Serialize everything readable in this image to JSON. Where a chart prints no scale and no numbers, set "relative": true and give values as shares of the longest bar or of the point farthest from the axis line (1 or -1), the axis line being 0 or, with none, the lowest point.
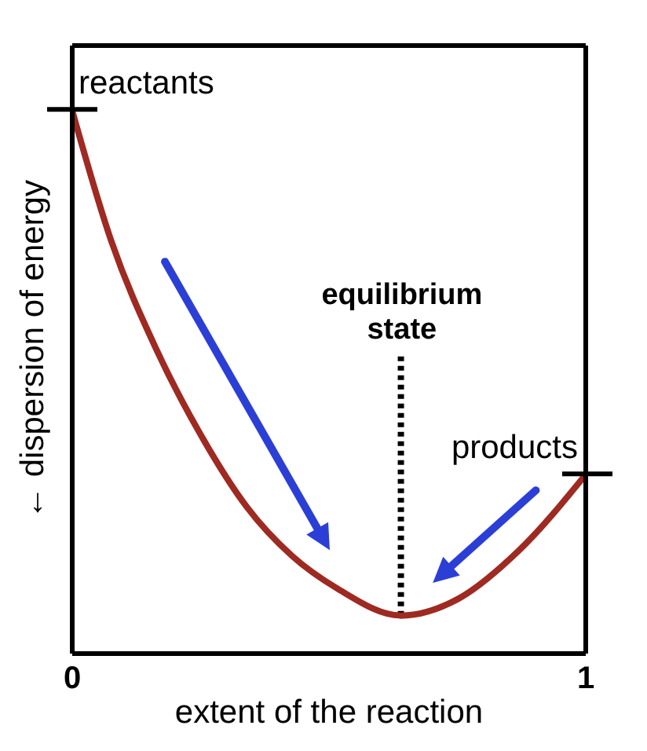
{
  "chart_data": {
    "type": "line",
    "relative": true,
    "xlabel": "extent of the reaction",
    "ylabel": "← dispersion of energy",
    "xlim": [
      0,
      1
    ],
    "xticks": [
      0,
      1
    ],
    "x": [
      0,
      0.076,
      0.164,
      0.252,
      0.34,
      0.428,
      0.516,
      0.64,
      0.75,
      0.87,
      1
    ],
    "series": [
      {
        "color": "#9e2a22",
        "values": [
          1,
          0.76,
          0.56,
          0.4,
          0.27,
          0.18,
          0.12,
          0.07,
          0.1,
          0.19,
          0.33
        ]
      }
    ],
    "marker": "none",
    "ref_lines": [
      {
        "axis": "x",
        "value": 0.64,
        "label": "equilibrium state",
        "line_style": "dotted",
        "color": "#000000"
      }
    ],
    "annotations": [
      {
        "text": "reactants",
        "x": 0,
        "y": 1
      },
      {
        "text": "products",
        "x": 1,
        "y": 0.33
      }
    ]
  }
}
